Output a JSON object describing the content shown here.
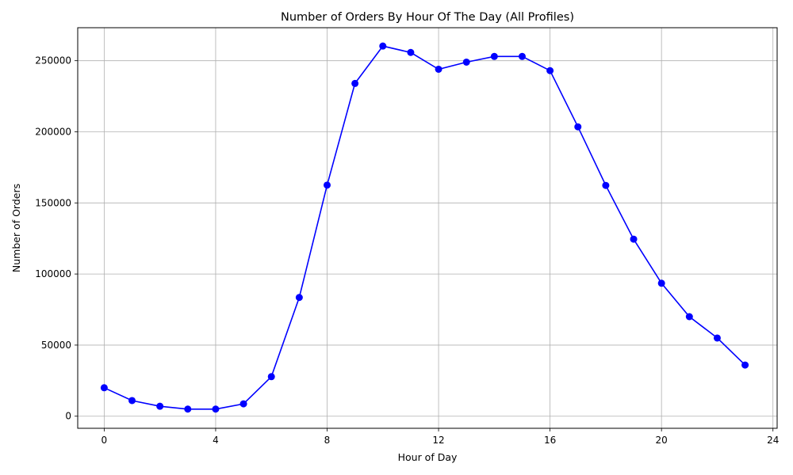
{
  "chart_data": {
    "type": "line",
    "title": "Number of Orders By Hour Of The Day (All Profiles)",
    "xlabel": "Hour of Day",
    "ylabel": "Number of Orders",
    "x": [
      0,
      1,
      2,
      3,
      4,
      5,
      6,
      7,
      8,
      9,
      10,
      11,
      12,
      13,
      14,
      15,
      16,
      17,
      18,
      19,
      20,
      21,
      22,
      23
    ],
    "series": [
      {
        "values": [
          20000,
          11000,
          7000,
          5000,
          5000,
          8700,
          27800,
          83500,
          162500,
          234000,
          260300,
          255800,
          244000,
          249000,
          253000,
          253000,
          243000,
          203500,
          162300,
          124500,
          93500,
          70000,
          55000,
          36000
        ],
        "color": "#0000ff"
      }
    ],
    "xticks": [
      0,
      4,
      8,
      12,
      16,
      20,
      24
    ],
    "xtick_labels": [
      "0",
      "4",
      "8",
      "12",
      "16",
      "20",
      "24"
    ],
    "yticks": [
      0,
      50000,
      100000,
      150000,
      200000,
      250000
    ],
    "ytick_labels": [
      "0",
      "50000",
      "100000",
      "150000",
      "200000",
      "250000"
    ],
    "xlim": [
      -0.95,
      24.15
    ],
    "ylim": [
      -8500,
      273200
    ],
    "grid": true,
    "marker": "circle"
  }
}
